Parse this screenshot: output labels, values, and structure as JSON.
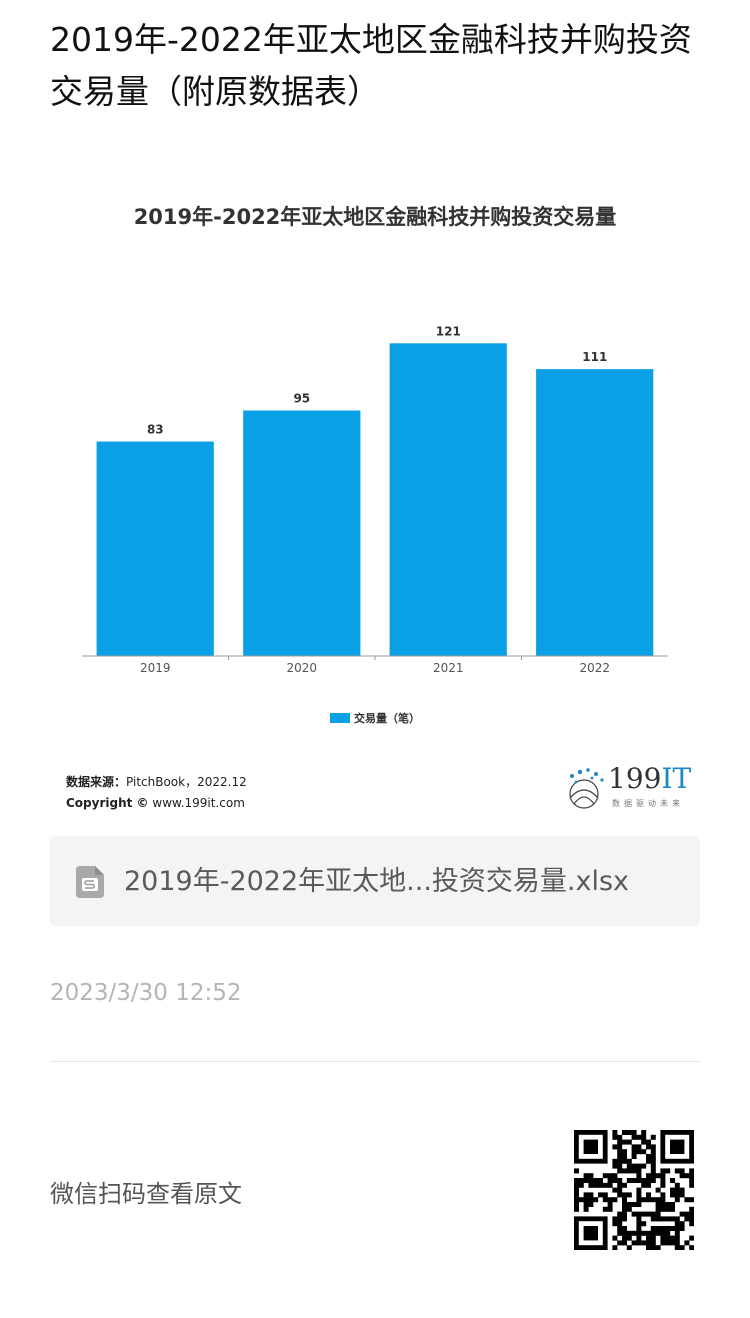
{
  "page_title": "2019年-2022年亚太地区金融科技并购投资交易量（附原数据表）",
  "chart_data": {
    "type": "bar",
    "title": "2019年-2022年亚太地区金融科技并购投资交易量",
    "categories": [
      "2019",
      "2020",
      "2021",
      "2022"
    ],
    "series": [
      {
        "name": "交易量（笔）",
        "values": [
          83,
          95,
          121,
          111
        ]
      }
    ],
    "data_labels": true,
    "ylim": [
      0,
      130
    ],
    "grid": false,
    "legend": "bottom-center",
    "bar_color": "#0aa0e6"
  },
  "source": {
    "label": "数据来源：",
    "text": "PitchBook，2022.12",
    "copyright_label": "Copyright ©",
    "copyright_text": "www.199it.com"
  },
  "brand": {
    "name_num": "199",
    "name_it": "IT",
    "slogan": "数据驱动未来"
  },
  "attachment": {
    "icon": "spreadsheet-file-icon",
    "file_name": "2019年-2022年亚太地...投资交易量.xlsx"
  },
  "timestamp": "2023/3/30 12:52",
  "footer": {
    "scan_text": "微信扫码查看原文",
    "qr_icon": "qr-code-icon"
  }
}
